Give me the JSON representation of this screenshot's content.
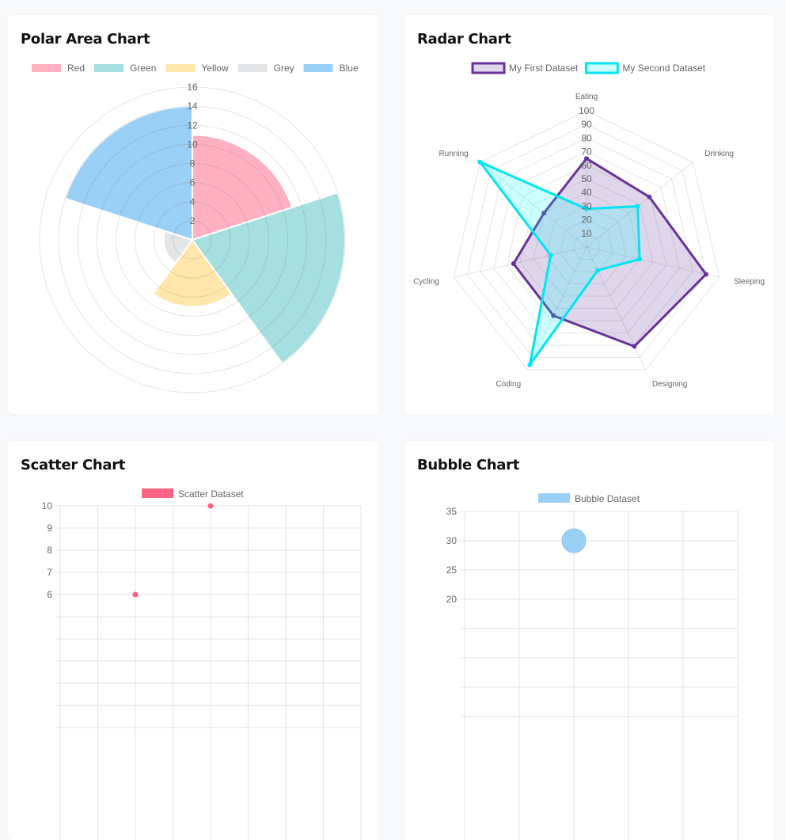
{
  "chart_data": [
    {
      "type": "polarArea",
      "title": "Polar Area Chart",
      "categories": [
        "Red",
        "Green",
        "Yellow",
        "Grey",
        "Blue"
      ],
      "values": [
        11,
        16,
        7,
        3,
        14
      ],
      "colors": [
        "#ffb1c1",
        "#a5dfdf",
        "#ffe6aa",
        "#e4e5e7",
        "#9ad0f5"
      ],
      "rlim": [
        0,
        16
      ],
      "ticks": [
        "2",
        "4",
        "6",
        "8",
        "10",
        "12",
        "14",
        "16"
      ],
      "legend": "top",
      "grid": true
    },
    {
      "type": "radar",
      "title": "Radar Chart",
      "categories": [
        "Eating",
        "Drinking",
        "Sleeping",
        "Designing",
        "Coding",
        "Cycling",
        "Running"
      ],
      "series": [
        {
          "name": "My First Dataset",
          "values": [
            65,
            59,
            90,
            81,
            56,
            55,
            40
          ],
          "color": "#663399",
          "fill": "rgba(102,51,153,0.2)"
        },
        {
          "name": "My Second Dataset",
          "values": [
            28,
            48,
            40,
            19,
            96,
            27,
            100
          ],
          "color": "#00e5f0",
          "fill": "rgba(0,255,255,0.2)"
        }
      ],
      "rlim": [
        0,
        100
      ],
      "ticks": [
        "10",
        "20",
        "30",
        "40",
        "50",
        "60",
        "70",
        "80",
        "90",
        "100"
      ],
      "legend": "top",
      "grid": true
    },
    {
      "type": "scatter",
      "title": "Scatter Chart",
      "series": [
        {
          "name": "Scatter Dataset",
          "color": "#ff6384",
          "points": [
            {
              "x": 0,
              "y": 10
            },
            {
              "x": -5,
              "y": 6
            }
          ]
        }
      ],
      "xlim": [
        -10,
        10
      ],
      "ylim": [
        0,
        10
      ],
      "yticks": [
        "10",
        "9",
        "8",
        "7",
        "6"
      ],
      "legend": "top",
      "grid": true
    },
    {
      "type": "bubble",
      "title": "Bubble Chart",
      "series": [
        {
          "name": "Bubble Dataset",
          "color": "#9ad0f5",
          "points": [
            {
              "x": 20,
              "y": 30,
              "r": 15
            }
          ]
        }
      ],
      "xlim": [
        0,
        50
      ],
      "ylim": [
        0,
        35
      ],
      "yticks": [
        "35",
        "30",
        "25",
        "20"
      ],
      "legend": "top",
      "grid": true
    }
  ]
}
